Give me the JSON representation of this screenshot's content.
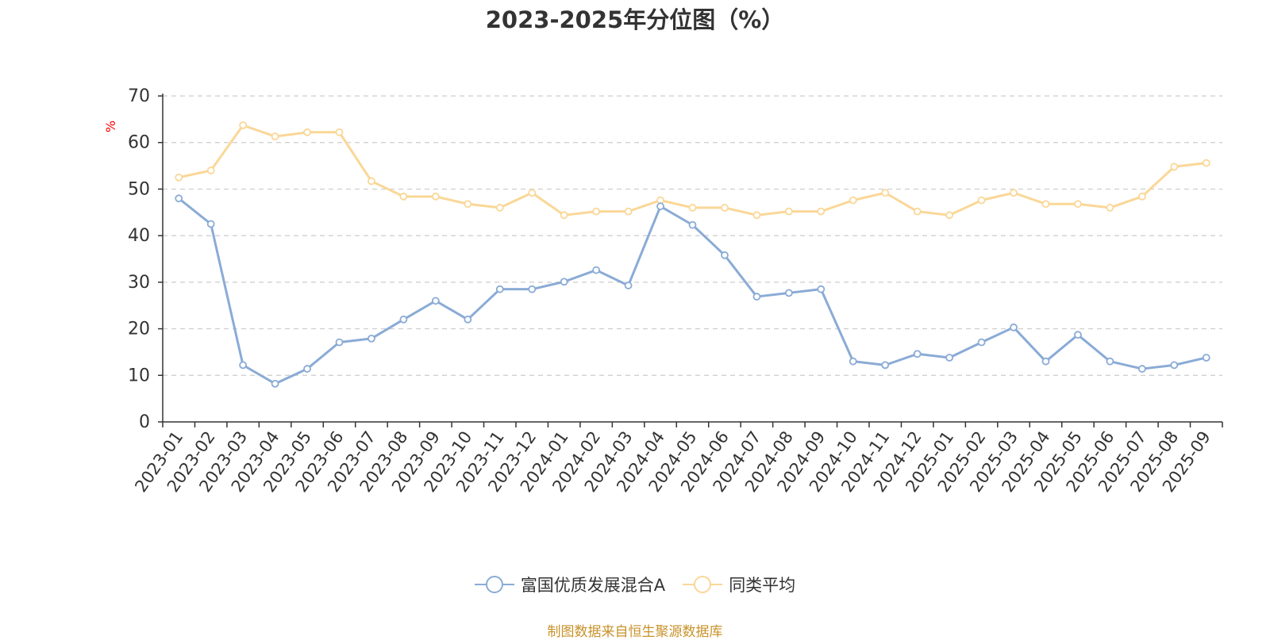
{
  "page": {
    "title": "2023-2025年分位图（%）",
    "y_unit": "%",
    "source": "制图数据来自恒生聚源数据库"
  },
  "chart_data": {
    "type": "line",
    "title": "2023-2025年分位图（%）",
    "xlabel": "",
    "ylabel": "%",
    "ylim": [
      0,
      70
    ],
    "yticks": [
      0,
      10,
      20,
      30,
      40,
      50,
      60,
      70
    ],
    "grid": true,
    "legend_position": "bottom",
    "categories": [
      "2023-01",
      "2023-02",
      "2023-03",
      "2023-04",
      "2023-05",
      "2023-06",
      "2023-07",
      "2023-08",
      "2023-09",
      "2023-10",
      "2023-11",
      "2023-12",
      "2024-01",
      "2024-02",
      "2024-03",
      "2024-04",
      "2024-05",
      "2024-06",
      "2024-07",
      "2024-08",
      "2024-09",
      "2024-10",
      "2024-11",
      "2024-12",
      "2025-01",
      "2025-02",
      "2025-03",
      "2025-04",
      "2025-05",
      "2025-06",
      "2025-07",
      "2025-08",
      "2025-09"
    ],
    "series": [
      {
        "name": "富国优质发展混合A",
        "color": "#8aabd6",
        "values": [
          48,
          42.5,
          12.2,
          8.2,
          11.4,
          17.1,
          17.9,
          22,
          26,
          22,
          28.5,
          28.5,
          30.1,
          32.6,
          29.3,
          46.3,
          42.3,
          35.8,
          26.9,
          27.7,
          28.5,
          13,
          12.2,
          14.6,
          13.8,
          17.1,
          20.3,
          13,
          18.7,
          13,
          11.4,
          12.2,
          13.8
        ]
      },
      {
        "name": "同类平均",
        "color": "#fad797",
        "values": [
          52.5,
          54,
          63.7,
          61.3,
          62.2,
          62.2,
          51.7,
          48.4,
          48.4,
          46.8,
          46,
          49.2,
          44.4,
          45.2,
          45.2,
          47.6,
          46,
          46,
          44.4,
          45.2,
          45.2,
          47.6,
          49.2,
          45.2,
          44.4,
          47.6,
          49.2,
          46.8,
          46.8,
          46,
          48.4,
          54.8,
          55.6
        ]
      }
    ]
  }
}
